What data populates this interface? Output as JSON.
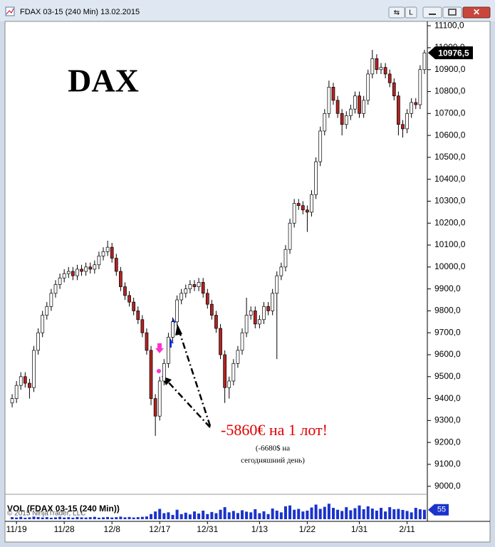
{
  "window": {
    "title": "FDAX 03-15 (240 Min)  13.02.2015",
    "button": "L",
    "copyright": "© 2015 NinjaTrader, LLC"
  },
  "chart_data": {
    "type": "candlestick",
    "title": "DAX",
    "annotations": [
      "-5860€ на 1 лот!",
      "(-6680$ на",
      "сегодняшний день)"
    ],
    "categories": [
      null,
      "11/19",
      null,
      null,
      null,
      null,
      null,
      null,
      null,
      null,
      null,
      null,
      "11/28",
      null,
      null,
      null,
      null,
      null,
      null,
      null,
      null,
      null,
      null,
      "12/8",
      null,
      null,
      null,
      null,
      null,
      null,
      null,
      null,
      null,
      null,
      "12/17",
      null,
      null,
      null,
      null,
      null,
      null,
      null,
      null,
      null,
      null,
      "12/31",
      null,
      null,
      null,
      null,
      null,
      null,
      null,
      null,
      null,
      null,
      null,
      "1/13",
      null,
      null,
      null,
      null,
      null,
      null,
      null,
      null,
      null,
      null,
      "1/22",
      null,
      null,
      null,
      null,
      null,
      null,
      null,
      null,
      null,
      null,
      null,
      "1/31",
      null,
      null,
      null,
      null,
      null,
      null,
      null,
      null,
      null,
      null,
      "2/11",
      null,
      null,
      null,
      null
    ],
    "open": [
      9380,
      9400,
      9460,
      9500,
      9470,
      9450,
      9620,
      9700,
      9780,
      9820,
      9880,
      9920,
      9950,
      9970,
      9980,
      9960,
      9990,
      9980,
      10000,
      9990,
      10010,
      10050,
      10070,
      10090,
      10040,
      9980,
      9910,
      9870,
      9840,
      9800,
      9760,
      9700,
      9620,
      9400,
      9320,
      9480,
      9560,
      9680,
      9750,
      9850,
      9880,
      9900,
      9920,
      9910,
      9930,
      9880,
      9830,
      9780,
      9720,
      9600,
      9450,
      9480,
      9560,
      9620,
      9700,
      9780,
      9800,
      9740,
      9760,
      9820,
      9800,
      9880,
      9960,
      10000,
      10080,
      10200,
      10290,
      10280,
      10260,
      10250,
      10330,
      10480,
      10620,
      10700,
      10820,
      10760,
      10700,
      10650,
      10690,
      10720,
      10780,
      10700,
      10760,
      10880,
      10950,
      10900,
      10910,
      10880,
      10840,
      10780,
      10650,
      10630,
      10700,
      10750,
      10740,
      10900
    ],
    "high": [
      9420,
      9480,
      9520,
      9520,
      9490,
      9640,
      9720,
      9800,
      9840,
      9900,
      9940,
      9970,
      9990,
      10000,
      10000,
      10010,
      10010,
      10020,
      10020,
      10030,
      10070,
      10090,
      10120,
      10110,
      10060,
      10000,
      9930,
      9890,
      9860,
      9820,
      9780,
      9720,
      9640,
      9420,
      9500,
      9580,
      9700,
      9770,
      9870,
      9900,
      9920,
      9940,
      9940,
      9950,
      9950,
      9900,
      9850,
      9800,
      9740,
      9620,
      9500,
      9580,
      9640,
      9720,
      9860,
      9820,
      9820,
      9780,
      9840,
      9840,
      9900,
      9980,
      10020,
      10100,
      10220,
      10310,
      10310,
      10300,
      10280,
      10350,
      10500,
      10640,
      10720,
      10850,
      10840,
      10780,
      10720,
      10710,
      10740,
      10800,
      10800,
      10780,
      10900,
      10990,
      10970,
      10930,
      10930,
      10900,
      10860,
      10800,
      10670,
      10720,
      10770,
      10770,
      10920,
      10990
    ],
    "low": [
      9360,
      9380,
      9440,
      9450,
      9400,
      9430,
      9600,
      9680,
      9760,
      9800,
      9860,
      9900,
      9930,
      9950,
      9940,
      9940,
      9960,
      9960,
      9970,
      9970,
      9990,
      10030,
      10050,
      10020,
      9960,
      9890,
      9850,
      9820,
      9780,
      9740,
      9680,
      9600,
      9370,
      9230,
      9300,
      9460,
      9540,
      9660,
      9730,
      9830,
      9860,
      9880,
      9890,
      9890,
      9860,
      9810,
      9760,
      9700,
      9580,
      9380,
      9400,
      9460,
      9540,
      9600,
      9680,
      9760,
      9720,
      9720,
      9740,
      9780,
      9780,
      9580,
      9940,
      9980,
      10060,
      10180,
      10260,
      10240,
      10160,
      10230,
      10310,
      10460,
      10600,
      10680,
      10740,
      10680,
      10600,
      10630,
      10670,
      10700,
      10680,
      10680,
      10740,
      10860,
      10880,
      10880,
      10860,
      10820,
      10760,
      10600,
      10590,
      10610,
      10680,
      10720,
      10720,
      10880
    ],
    "close": [
      9400,
      9460,
      9500,
      9470,
      9450,
      9620,
      9700,
      9780,
      9820,
      9880,
      9920,
      9950,
      9970,
      9980,
      9960,
      9990,
      9980,
      10000,
      9990,
      10010,
      10050,
      10070,
      10090,
      10040,
      9980,
      9910,
      9870,
      9840,
      9800,
      9760,
      9700,
      9620,
      9400,
      9320,
      9480,
      9560,
      9680,
      9750,
      9850,
      9880,
      9900,
      9920,
      9910,
      9930,
      9880,
      9830,
      9780,
      9720,
      9600,
      9450,
      9480,
      9560,
      9620,
      9700,
      9780,
      9800,
      9740,
      9760,
      9820,
      9800,
      9880,
      9960,
      10000,
      10080,
      10200,
      10290,
      10280,
      10260,
      10250,
      10330,
      10480,
      10620,
      10700,
      10820,
      10760,
      10700,
      10650,
      10690,
      10720,
      10780,
      10700,
      10760,
      10880,
      10950,
      10900,
      10910,
      10880,
      10840,
      10780,
      10650,
      10630,
      10700,
      10750,
      10740,
      10900,
      10976.5
    ],
    "last_close_label": "10976,5",
    "up_color": "#ffffff",
    "down_color": "#b22222",
    "ylim": [
      8970,
      11120
    ],
    "yticks": [
      {
        "value": 9000,
        "label": "9000,0"
      },
      {
        "value": 9100,
        "label": "9100,0"
      },
      {
        "value": 9200,
        "label": "9200,0"
      },
      {
        "value": 9300,
        "label": "9300,0"
      },
      {
        "value": 9400,
        "label": "9400,0"
      },
      {
        "value": 9500,
        "label": "9500,0"
      },
      {
        "value": 9600,
        "label": "9600,0"
      },
      {
        "value": 9700,
        "label": "9700,0"
      },
      {
        "value": 9800,
        "label": "9800,0"
      },
      {
        "value": 9900,
        "label": "9900,0"
      },
      {
        "value": 10000,
        "label": "10000,0"
      },
      {
        "value": 10100,
        "label": "10100,0"
      },
      {
        "value": 10200,
        "label": "10200,0"
      },
      {
        "value": 10300,
        "label": "10300,0"
      },
      {
        "value": 10400,
        "label": "10400,0"
      },
      {
        "value": 10500,
        "label": "10500,0"
      },
      {
        "value": 10600,
        "label": "10600,0"
      },
      {
        "value": 10700,
        "label": "10700,0"
      },
      {
        "value": 10800,
        "label": "10800,0"
      },
      {
        "value": 10900,
        "label": "10900,0"
      },
      {
        "value": 11000,
        "label": "11000,0"
      },
      {
        "value": 11100,
        "label": "11100,0"
      }
    ],
    "volume": {
      "name": "VOL (FDAX 03-15 (240 Min))",
      "color": "#1a33cc",
      "ylim": [
        0,
        120
      ],
      "values": [
        12,
        10,
        14,
        9,
        11,
        15,
        13,
        10,
        12,
        9,
        11,
        14,
        10,
        12,
        9,
        13,
        11,
        10,
        12,
        14,
        9,
        11,
        13,
        10,
        12,
        15,
        11,
        13,
        10,
        12,
        14,
        16,
        30,
        45,
        60,
        35,
        40,
        25,
        55,
        30,
        38,
        28,
        45,
        33,
        50,
        30,
        42,
        35,
        55,
        70,
        40,
        48,
        36,
        52,
        44,
        40,
        58,
        35,
        46,
        30,
        62,
        50,
        40,
        75,
        80,
        55,
        60,
        45,
        50,
        68,
        85,
        60,
        72,
        90,
        66,
        55,
        48,
        70,
        52,
        64,
        80,
        58,
        75,
        62,
        50,
        66,
        45,
        70,
        58,
        60,
        54,
        48,
        40,
        66,
        58,
        55
      ]
    }
  }
}
